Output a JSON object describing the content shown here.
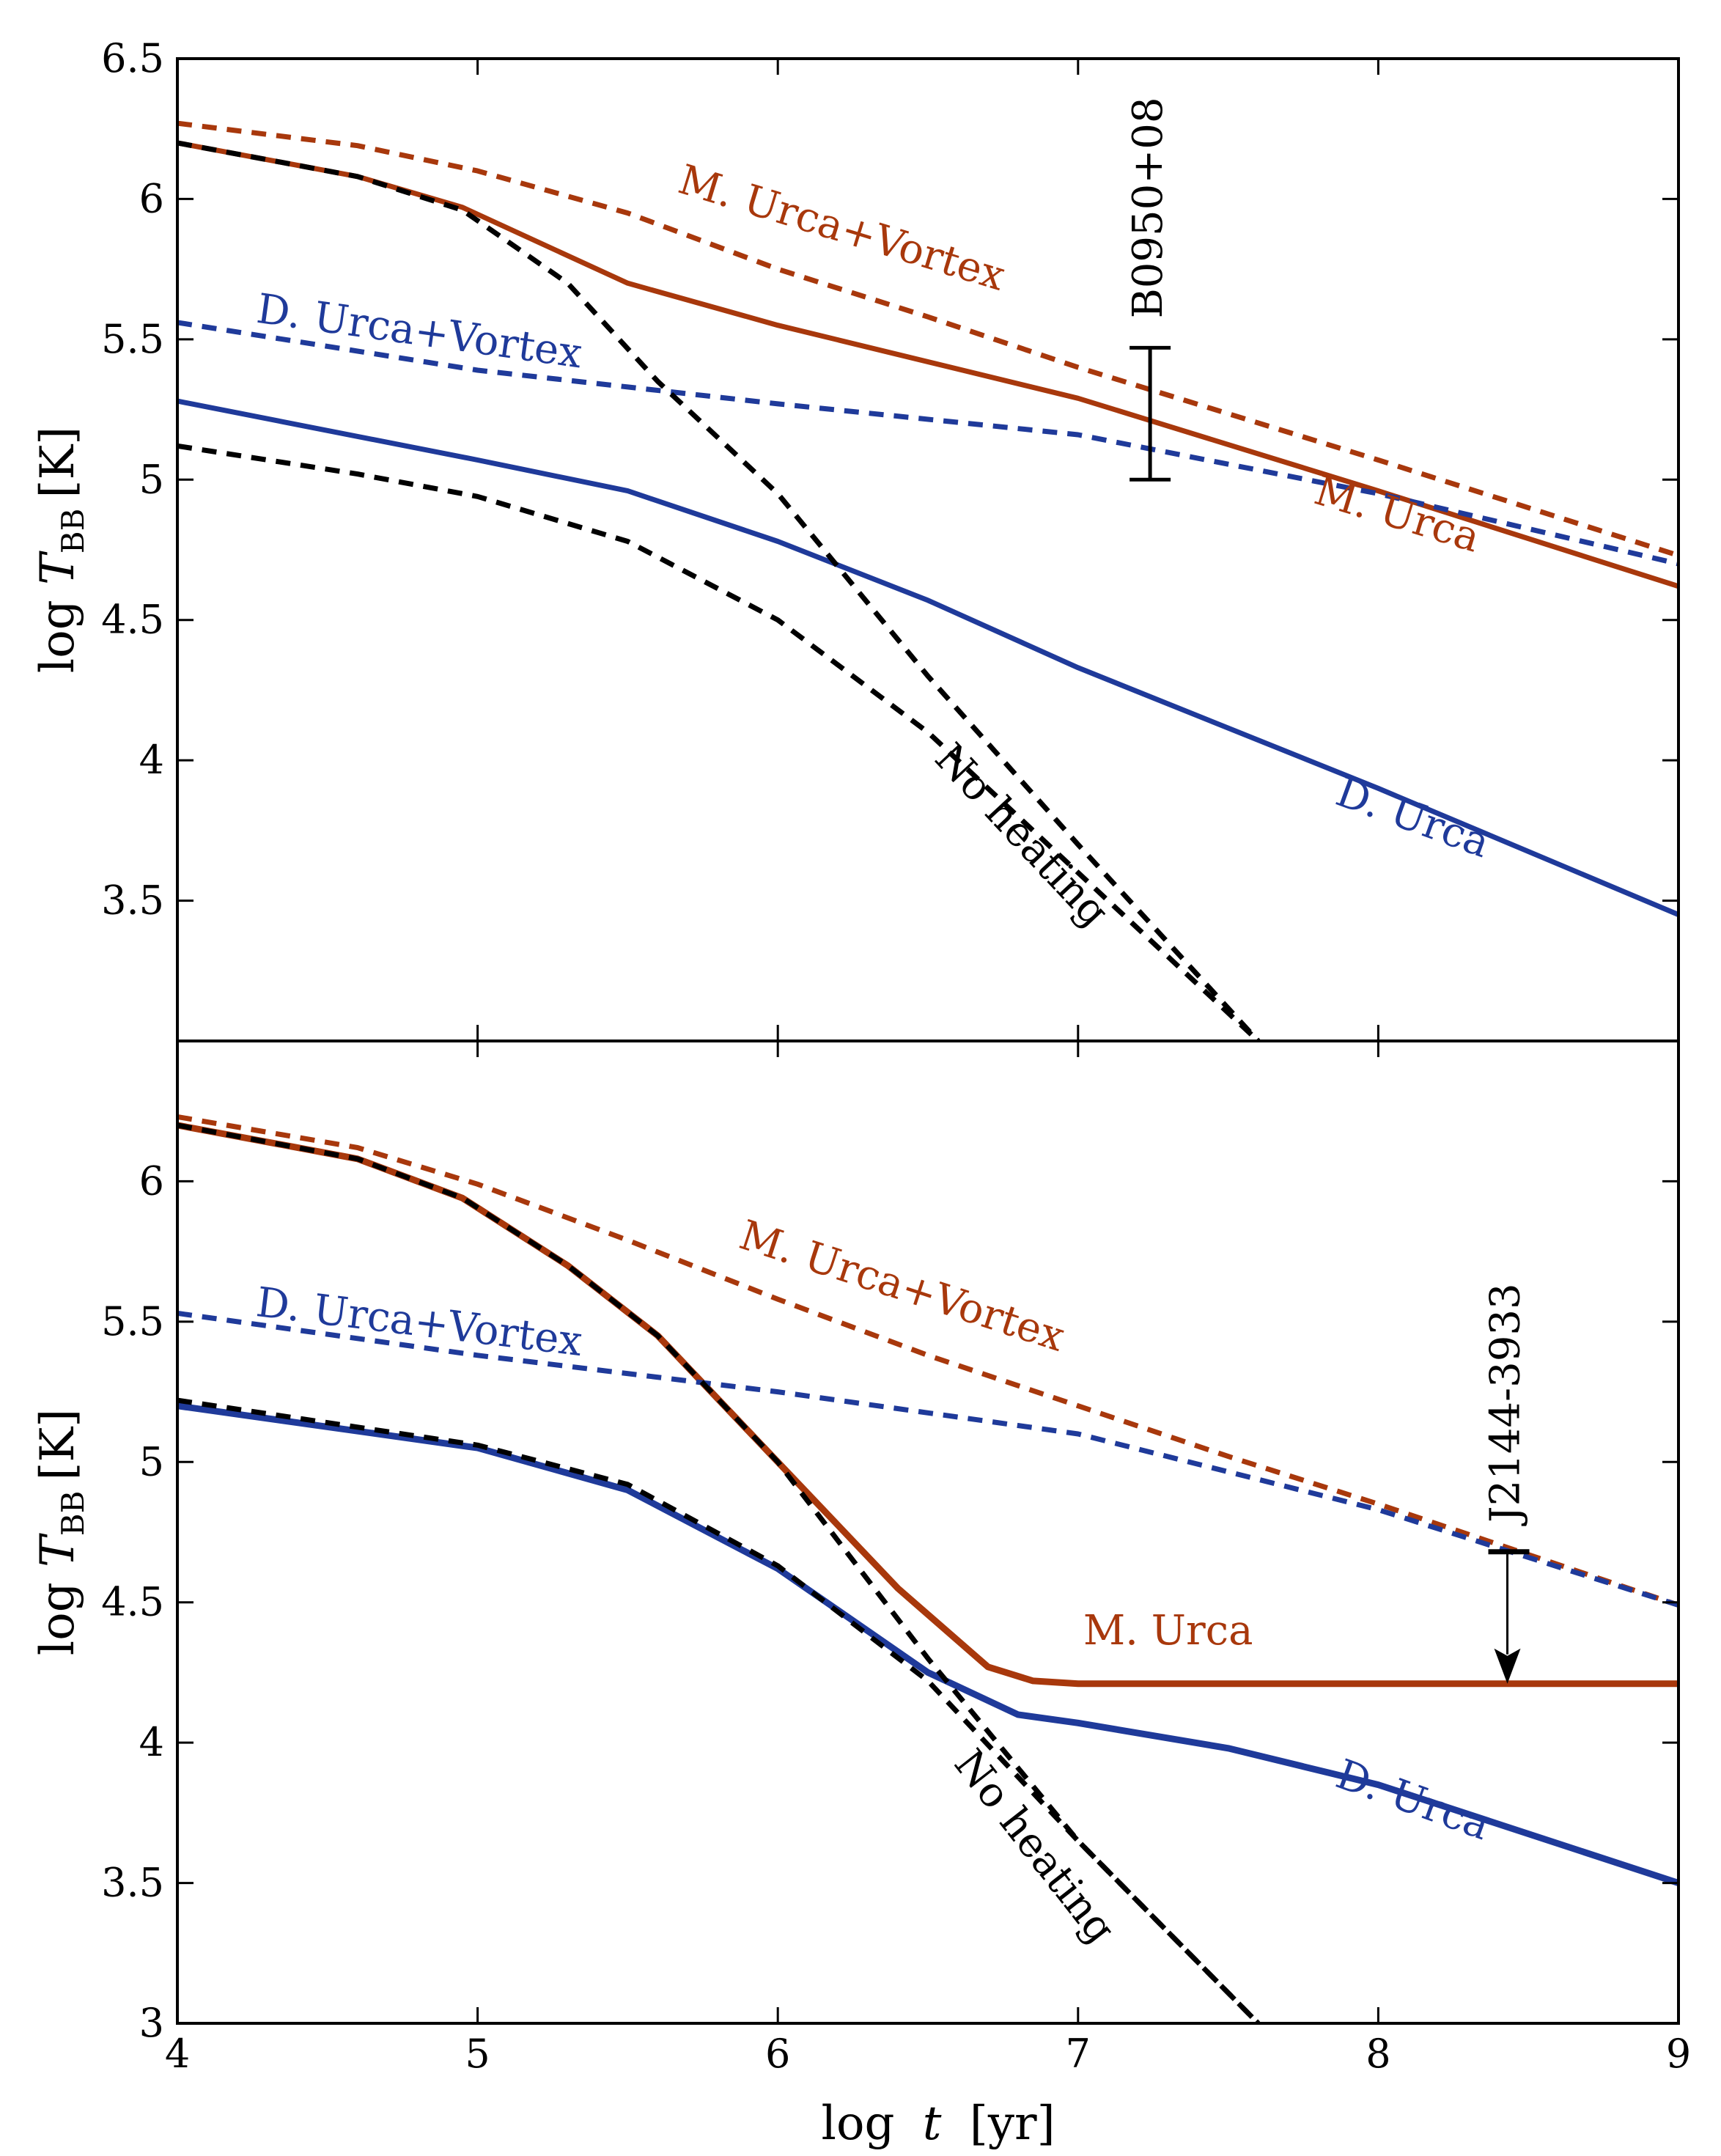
{
  "colors": {
    "m_urca": "#a8380c",
    "d_urca": "#1f3a9a",
    "no_heating": "#000000",
    "axis": "#000000"
  },
  "shared_axis": {
    "xlabel_prefix": "log",
    "xlabel_var": "t",
    "xlabel_unit": "[yr]",
    "ylabel_prefix": "log",
    "ylabel_var": "T",
    "ylabel_sub": "BB",
    "ylabel_unit": "[K]"
  },
  "chart_data": [
    {
      "type": "line",
      "title": "",
      "xlabel": "log t [yr]",
      "ylabel": "log T_BB [K]",
      "xlim": [
        4,
        9
      ],
      "ylim": [
        3.0,
        6.5
      ],
      "xticks": [
        "4",
        "5",
        "6",
        "7",
        "8",
        "9"
      ],
      "yticks": [
        "3.5",
        "4",
        "4.5",
        "5",
        "5.5",
        "6",
        "6.5"
      ],
      "ytick_values": [
        3.5,
        4,
        4.5,
        5,
        5.5,
        6,
        6.5
      ],
      "series": [
        {
          "name": "M. Urca",
          "color": "m_urca",
          "dash": "solid",
          "points": [
            [
              4.0,
              6.2
            ],
            [
              4.6,
              6.08
            ],
            [
              4.95,
              5.97
            ],
            [
              5.5,
              5.7
            ],
            [
              6.0,
              5.55
            ],
            [
              7.0,
              5.29
            ],
            [
              8.0,
              4.96
            ],
            [
              9.0,
              4.62
            ]
          ]
        },
        {
          "name": "M. Urca+Vortex",
          "color": "m_urca",
          "dash": "dashed",
          "points": [
            [
              4.0,
              6.27
            ],
            [
              4.6,
              6.19
            ],
            [
              5.0,
              6.1
            ],
            [
              5.5,
              5.95
            ],
            [
              6.0,
              5.75
            ],
            [
              6.5,
              5.58
            ],
            [
              7.0,
              5.4
            ],
            [
              8.0,
              5.07
            ],
            [
              9.0,
              4.73
            ]
          ]
        },
        {
          "name": "D. Urca",
          "color": "d_urca",
          "dash": "solid",
          "points": [
            [
              4.0,
              5.28
            ],
            [
              5.0,
              5.07
            ],
            [
              5.5,
              4.96
            ],
            [
              6.0,
              4.78
            ],
            [
              6.5,
              4.57
            ],
            [
              7.0,
              4.33
            ],
            [
              8.0,
              3.9
            ],
            [
              9.0,
              3.45
            ]
          ]
        },
        {
          "name": "D. Urca+Vortex",
          "color": "d_urca",
          "dash": "dashed",
          "points": [
            [
              4.0,
              5.56
            ],
            [
              5.0,
              5.39
            ],
            [
              5.5,
              5.33
            ],
            [
              6.0,
              5.27
            ],
            [
              7.0,
              5.16
            ],
            [
              8.0,
              4.95
            ],
            [
              9.0,
              4.7
            ]
          ]
        },
        {
          "name": "No heating",
          "color": "no_heating",
          "dash": "dashed",
          "points": [
            [
              4.0,
              6.2
            ],
            [
              4.6,
              6.08
            ],
            [
              4.95,
              5.96
            ],
            [
              5.3,
              5.7
            ],
            [
              5.6,
              5.35
            ],
            [
              6.0,
              4.95
            ],
            [
              6.5,
              4.3
            ],
            [
              7.0,
              3.7
            ],
            [
              7.6,
              3.0
            ]
          ]
        },
        {
          "name": "No heating",
          "color": "no_heating",
          "dash": "dashed",
          "points": [
            [
              4.0,
              5.12
            ],
            [
              4.6,
              5.02
            ],
            [
              5.0,
              4.94
            ],
            [
              5.5,
              4.78
            ],
            [
              6.0,
              4.5
            ],
            [
              6.5,
              4.1
            ],
            [
              7.0,
              3.6
            ],
            [
              7.6,
              3.0
            ]
          ]
        }
      ],
      "labels": [
        {
          "text": "M. Urca+Vortex",
          "color": "m_urca",
          "x": 6.2,
          "y": 5.85,
          "angle": 17
        },
        {
          "text": "D. Urca+Vortex",
          "color": "d_urca",
          "x": 4.8,
          "y": 5.48,
          "angle": 8
        },
        {
          "text": "M. Urca",
          "color": "m_urca",
          "x": 8.05,
          "y": 4.83,
          "angle": 17
        },
        {
          "text": "D. Urca",
          "color": "d_urca",
          "x": 8.1,
          "y": 3.75,
          "angle": 20
        },
        {
          "text": "No heating",
          "color": "no_heating",
          "x": 6.78,
          "y": 3.7,
          "angle": 47
        }
      ],
      "errorbar": {
        "label": "B0950+08",
        "x": 7.24,
        "y_low": 5.0,
        "y_high": 5.47,
        "upper_limit": false
      }
    },
    {
      "type": "line",
      "title": "",
      "xlabel": "log t [yr]",
      "ylabel": "log T_BB [K]",
      "xlim": [
        4,
        9
      ],
      "ylim": [
        3.0,
        6.5
      ],
      "xticks": [
        "4",
        "5",
        "6",
        "7",
        "8",
        "9"
      ],
      "yticks": [
        "3",
        "3.5",
        "4",
        "4.5",
        "5",
        "5.5",
        "6"
      ],
      "ytick_values": [
        3,
        3.5,
        4,
        4.5,
        5,
        5.5,
        6
      ],
      "series": [
        {
          "name": "M. Urca",
          "color": "m_urca",
          "dash": "solid",
          "points": [
            [
              4.0,
              6.2
            ],
            [
              4.6,
              6.08
            ],
            [
              4.95,
              5.94
            ],
            [
              5.3,
              5.7
            ],
            [
              5.6,
              5.45
            ],
            [
              6.0,
              5.0
            ],
            [
              6.4,
              4.55
            ],
            [
              6.7,
              4.27
            ],
            [
              6.85,
              4.22
            ],
            [
              7.0,
              4.21
            ],
            [
              8.0,
              4.21
            ],
            [
              9.0,
              4.21
            ]
          ]
        },
        {
          "name": "M. Urca+Vortex",
          "color": "m_urca",
          "dash": "dashed",
          "points": [
            [
              4.0,
              6.23
            ],
            [
              4.6,
              6.12
            ],
            [
              5.0,
              5.99
            ],
            [
              5.5,
              5.79
            ],
            [
              6.0,
              5.58
            ],
            [
              6.5,
              5.38
            ],
            [
              7.0,
              5.2
            ],
            [
              7.5,
              5.02
            ],
            [
              8.0,
              4.85
            ],
            [
              9.0,
              4.49
            ]
          ]
        },
        {
          "name": "D. Urca",
          "color": "d_urca",
          "dash": "solid",
          "points": [
            [
              4.0,
              5.2
            ],
            [
              5.0,
              5.05
            ],
            [
              5.5,
              4.9
            ],
            [
              6.0,
              4.62
            ],
            [
              6.5,
              4.25
            ],
            [
              6.8,
              4.1
            ],
            [
              7.0,
              4.07
            ],
            [
              7.5,
              3.98
            ],
            [
              8.0,
              3.85
            ],
            [
              9.0,
              3.5
            ]
          ]
        },
        {
          "name": "D. Urca+Vortex",
          "color": "d_urca",
          "dash": "dashed",
          "points": [
            [
              4.0,
              5.53
            ],
            [
              5.0,
              5.38
            ],
            [
              6.0,
              5.25
            ],
            [
              7.0,
              5.1
            ],
            [
              8.0,
              4.83
            ],
            [
              9.0,
              4.49
            ]
          ]
        },
        {
          "name": "No heating",
          "color": "no_heating",
          "dash": "dashed",
          "points": [
            [
              4.0,
              6.2
            ],
            [
              4.6,
              6.08
            ],
            [
              4.95,
              5.94
            ],
            [
              5.3,
              5.7
            ],
            [
              5.6,
              5.45
            ],
            [
              6.0,
              5.0
            ],
            [
              6.5,
              4.3
            ],
            [
              7.0,
              3.65
            ],
            [
              7.6,
              3.0
            ]
          ]
        },
        {
          "name": "No heating",
          "color": "no_heating",
          "dash": "dashed",
          "points": [
            [
              4.0,
              5.22
            ],
            [
              5.0,
              5.06
            ],
            [
              5.5,
              4.92
            ],
            [
              6.0,
              4.63
            ],
            [
              6.5,
              4.22
            ],
            [
              7.0,
              3.65
            ],
            [
              7.6,
              3.0
            ]
          ]
        }
      ],
      "labels": [
        {
          "text": "M. Urca+Vortex",
          "color": "m_urca",
          "x": 6.4,
          "y": 5.58,
          "angle": 18
        },
        {
          "text": "D. Urca+Vortex",
          "color": "d_urca",
          "x": 4.8,
          "y": 5.45,
          "angle": 7
        },
        {
          "text": "M. Urca",
          "color": "m_urca",
          "x": 7.3,
          "y": 4.35,
          "angle": 0
        },
        {
          "text": "D. Urca",
          "color": "d_urca",
          "x": 8.1,
          "y": 3.75,
          "angle": 20
        },
        {
          "text": "No heating",
          "color": "no_heating",
          "x": 6.82,
          "y": 3.6,
          "angle": 52
        }
      ],
      "errorbar": {
        "label": "J2144-3933",
        "x": 8.43,
        "y_low": 4.21,
        "y_high": 4.68,
        "upper_limit": true
      }
    }
  ]
}
